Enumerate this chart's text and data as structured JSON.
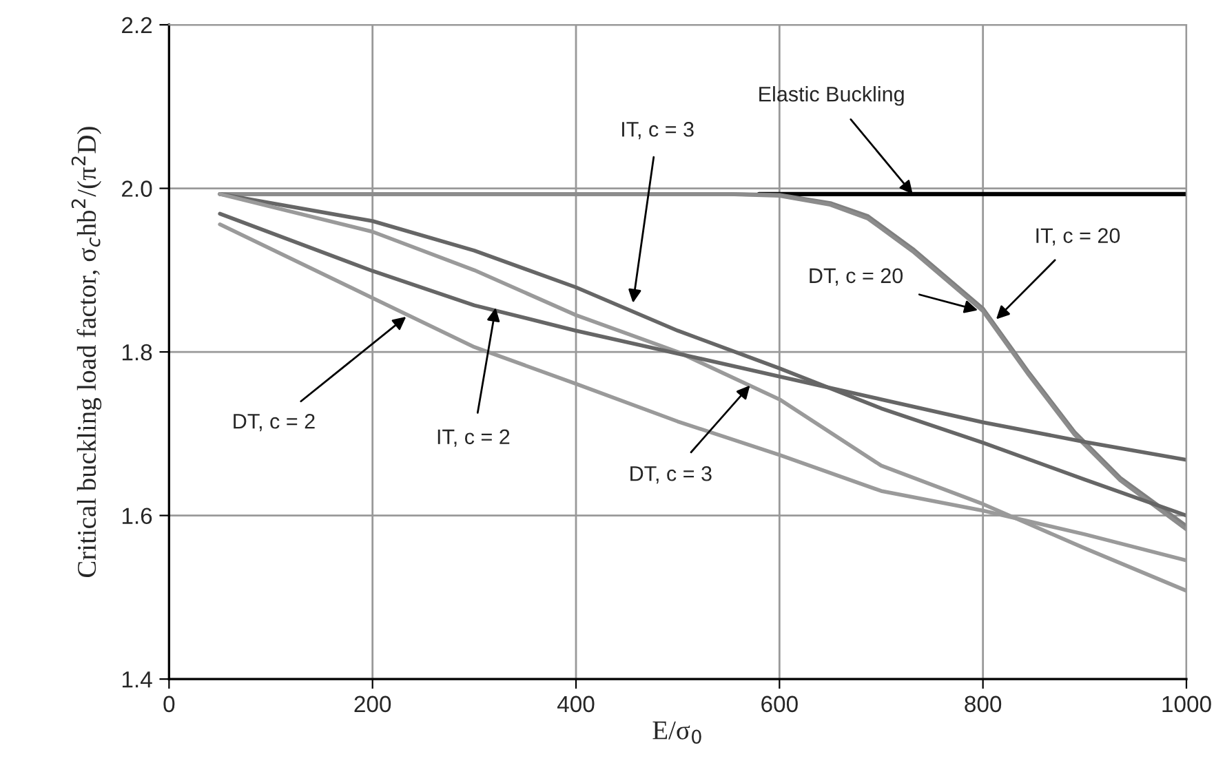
{
  "chart_data": {
    "type": "line",
    "xlabel": "E/σ$_{0}$",
    "ylabel": "Critical buckling load factor, σ$_{c}$hb$^{2}$/(π$^{2}$D)",
    "xlim": [
      0,
      1000
    ],
    "ylim": [
      1.4,
      2.2
    ],
    "xticks": [
      0,
      200,
      400,
      600,
      800,
      1000
    ],
    "yticks": [
      {
        "value": 1.4,
        "label": "1.4"
      },
      {
        "value": 1.6,
        "label": "1.6"
      },
      {
        "value": 1.8,
        "label": "1.8"
      },
      {
        "value": 2.0,
        "label": "2.0"
      },
      {
        "value": 2.2,
        "label": "2.2"
      }
    ],
    "grid": true,
    "legend": false,
    "marker": "none",
    "line_style": "solid",
    "series": [
      {
        "color": "#000000",
        "x": [
          580,
          1000
        ],
        "values": [
          1.993,
          1.993
        ]
      },
      {
        "color": "#7f7f7f",
        "x": [
          50,
          550,
          600,
          650,
          687,
          731,
          800,
          845,
          890,
          935,
          1000
        ],
        "values": [
          1.993,
          1.993,
          1.992,
          1.982,
          1.966,
          1.926,
          1.853,
          1.775,
          1.702,
          1.646,
          1.587
        ]
      },
      {
        "color": "#8c8c8c",
        "x": [
          50,
          550,
          600,
          650,
          687,
          731,
          800,
          845,
          890,
          935,
          1000
        ],
        "values": [
          1.993,
          1.993,
          1.991,
          1.98,
          1.963,
          1.923,
          1.85,
          1.772,
          1.699,
          1.643,
          1.583
        ]
      },
      {
        "color": "#666666",
        "x": [
          50,
          200,
          300,
          400,
          500,
          600,
          700,
          800,
          900,
          1000
        ],
        "values": [
          1.993,
          1.96,
          1.924,
          1.879,
          1.826,
          1.78,
          1.731,
          1.689,
          1.644,
          1.6
        ]
      },
      {
        "color": "#9a9a9a",
        "x": [
          50,
          200,
          300,
          400,
          500,
          600,
          700,
          800,
          900,
          1000
        ],
        "values": [
          1.993,
          1.947,
          1.9,
          1.845,
          1.8,
          1.742,
          1.661,
          1.614,
          1.56,
          1.508
        ]
      },
      {
        "color": "#666666",
        "x": [
          50,
          200,
          300,
          400,
          500,
          600,
          700,
          800,
          900,
          1000
        ],
        "values": [
          1.969,
          1.899,
          1.857,
          1.826,
          1.798,
          1.77,
          1.742,
          1.714,
          1.69,
          1.668
        ]
      },
      {
        "color": "#9a9a9a",
        "x": [
          50,
          200,
          300,
          400,
          500,
          600,
          700,
          800,
          900,
          1000
        ],
        "values": [
          1.956,
          1.866,
          1.806,
          1.761,
          1.715,
          1.674,
          1.63,
          1.606,
          1.577,
          1.545
        ]
      }
    ],
    "annotations": [
      {
        "text": "Elastic Buckling",
        "x": 731,
        "y": 1.993
      },
      {
        "text": "IT, c = 3",
        "x": 456,
        "y": 1.86
      },
      {
        "text": "DT, c = 20",
        "x": 795,
        "y": 1.851
      },
      {
        "text": "IT, c = 20",
        "x": 813,
        "y": 1.84
      },
      {
        "text": "DT, c = 2",
        "x": 233,
        "y": 1.843
      },
      {
        "text": "IT, c = 2",
        "x": 321,
        "y": 1.854
      },
      {
        "text": "DT, c = 3",
        "x": 571,
        "y": 1.759
      }
    ]
  }
}
